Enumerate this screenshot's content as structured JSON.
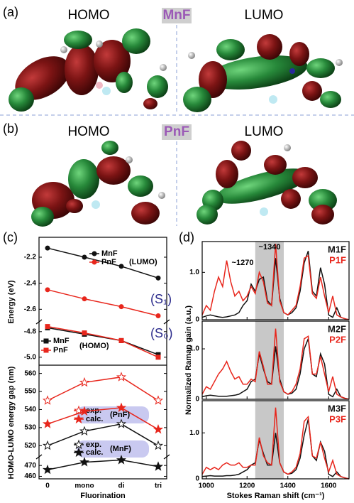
{
  "panels": [
    {
      "tag": "(a)",
      "homo": "HOMO",
      "molecule": "MnF",
      "lumo": "LUMO"
    },
    {
      "tag": "(b)",
      "homo": "HOMO",
      "molecule": "PnF",
      "lumo": "LUMO"
    },
    {
      "tag": "(c)"
    },
    {
      "tag": "(d)"
    }
  ],
  "chart_data": [
    {
      "type": "line",
      "categories": [
        "0",
        "mono",
        "di",
        "tri"
      ],
      "xlabel": "Fluorination",
      "ylabels": [
        "Energy (eV)",
        "HOMO-LUMO energy gap (nm)"
      ],
      "segments": [
        {
          "ylim": [
            -2.68,
            -2.08
          ],
          "yticks": [
            -2.2,
            -2.4,
            -2.6
          ],
          "notes": [
            "(LUMO)",
            "(S₁)"
          ],
          "series": [
            {
              "name": "MnF",
              "color": "#111111",
              "marker": "circle",
              "values": [
                -2.13,
                -2.2,
                -2.27,
                -2.36
              ]
            },
            {
              "name": "PnF",
              "color": "#e8261c",
              "marker": "circle",
              "values": [
                -2.45,
                -2.52,
                -2.58,
                -2.65
              ]
            }
          ]
        },
        {
          "ylim": [
            -5.04,
            -4.74
          ],
          "yticks": [
            -4.8,
            {
              "value": -5,
              "label": "-5.0"
            }
          ],
          "notes": [
            "(HOMO)",
            "(S₀)"
          ],
          "series": [
            {
              "name": "MnF",
              "color": "#111111",
              "marker": "square",
              "values": [
                -4.77,
                -4.82,
                -4.87,
                -4.98
              ]
            },
            {
              "name": "PnF",
              "color": "#e8261c",
              "marker": "square",
              "values": [
                -4.76,
                -4.81,
                -4.87,
                -5.0
              ]
            }
          ]
        },
        {
          "ylim": [
            515,
            563
          ],
          "yticks": [
            520,
            530,
            540,
            550,
            560
          ],
          "notes": [
            "(PnF)",
            "(MnF)"
          ],
          "series": [
            {
              "name": "exp.",
              "color": "#e8261c",
              "marker": "open-star",
              "values": [
                545,
                555,
                558,
                545
              ]
            },
            {
              "name": "calc.",
              "color": "#e8261c",
              "marker": "star",
              "values": [
                532,
                539,
                541,
                529
              ]
            },
            {
              "name": "exp.",
              "color": "#111111",
              "marker": "open-star",
              "values": [
                520,
                528,
                532,
                520
              ]
            }
          ]
        },
        {
          "ylim": [
            459,
            476
          ],
          "yticks": [
            460,
            470
          ],
          "notes": [],
          "series": [
            {
              "name": "calc.",
              "color": "#111111",
              "marker": "star",
              "values": [
                466,
                473,
                475,
                469
              ]
            }
          ]
        }
      ]
    },
    {
      "type": "line",
      "x": [
        980,
        1000,
        1020,
        1040,
        1060,
        1080,
        1100,
        1120,
        1140,
        1160,
        1180,
        1200,
        1220,
        1240,
        1260,
        1280,
        1300,
        1320,
        1340,
        1360,
        1380,
        1400,
        1420,
        1440,
        1460,
        1480,
        1500,
        1520,
        1540,
        1560,
        1580,
        1600,
        1620,
        1640,
        1660,
        1680,
        1700
      ],
      "xlim": [
        980,
        1700
      ],
      "ylim": [
        0,
        1.65
      ],
      "yticks": [
        0,
        {
          "value": 1,
          "label": "1.0"
        }
      ],
      "shaded_range": [
        1240,
        1380
      ],
      "annotations": [
        "~1270",
        "~1340"
      ],
      "series": [
        {
          "name": "M1F",
          "color": "#111111",
          "values": [
            0.05,
            0.08,
            0.1,
            0.08,
            0.06,
            0.05,
            0.06,
            0.08,
            0.1,
            0.15,
            0.3,
            0.4,
            0.75,
            0.6,
            0.85,
            0.9,
            0.4,
            0.3,
            1.3,
            0.45,
            0.15,
            0.1,
            0.15,
            0.25,
            0.6,
            1.2,
            1.45,
            0.6,
            0.5,
            1.1,
            0.75,
            0.1,
            0.05,
            0.25,
            0.05,
            0.02,
            0
          ]
        },
        {
          "name": "P1F",
          "color": "#e8261c",
          "values": [
            0.1,
            0.3,
            0.2,
            0.6,
            0.9,
            0.7,
            1.25,
            0.8,
            0.5,
            0.6,
            0.4,
            0.5,
            0.7,
            0.55,
            1.0,
            0.8,
            0.35,
            0.3,
            1.6,
            0.4,
            0.15,
            0.1,
            0.2,
            0.3,
            0.7,
            1.3,
            1.35,
            0.55,
            0.45,
            0.9,
            0.5,
            0.15,
            0.5,
            0.1,
            0.05,
            0.02,
            0
          ]
        }
      ]
    },
    {
      "type": "line",
      "x": [
        980,
        1000,
        1020,
        1040,
        1060,
        1080,
        1100,
        1120,
        1140,
        1160,
        1180,
        1200,
        1220,
        1240,
        1260,
        1280,
        1300,
        1320,
        1340,
        1360,
        1380,
        1400,
        1420,
        1440,
        1460,
        1480,
        1500,
        1520,
        1540,
        1560,
        1580,
        1600,
        1620,
        1640,
        1660,
        1680,
        1700
      ],
      "xlim": [
        980,
        1700
      ],
      "ylim": [
        0,
        1.55
      ],
      "yticks": [
        0,
        {
          "value": 1,
          "label": "1.0"
        }
      ],
      "shaded_range": [
        1240,
        1380
      ],
      "ylabel": "Normalized Raman gain (a.u.)",
      "series": [
        {
          "name": "M2F",
          "color": "#111111",
          "values": [
            0.05,
            0.07,
            0.08,
            0.07,
            0.06,
            0.06,
            0.06,
            0.07,
            0.08,
            0.1,
            0.15,
            0.2,
            0.35,
            0.4,
            0.9,
            0.6,
            0.35,
            0.3,
            1.05,
            0.4,
            0.15,
            0.1,
            0.12,
            0.2,
            0.5,
            1.0,
            1.2,
            0.5,
            0.45,
            0.9,
            0.7,
            0.1,
            0.05,
            0.2,
            0.05,
            0.02,
            0
          ]
        },
        {
          "name": "P2F",
          "color": "#e8261c",
          "values": [
            0.1,
            0.25,
            0.2,
            0.35,
            0.5,
            0.6,
            0.75,
            0.55,
            0.4,
            0.45,
            0.3,
            0.3,
            0.4,
            0.35,
            0.95,
            0.65,
            0.3,
            0.3,
            1.4,
            0.35,
            0.15,
            0.1,
            0.15,
            0.3,
            0.6,
            1.2,
            1.25,
            0.5,
            0.5,
            0.85,
            0.5,
            0.15,
            0.45,
            0.1,
            0.05,
            0.02,
            0
          ]
        }
      ]
    },
    {
      "type": "line",
      "x": [
        980,
        1000,
        1020,
        1040,
        1060,
        1080,
        1100,
        1120,
        1140,
        1160,
        1180,
        1200,
        1220,
        1240,
        1260,
        1280,
        1300,
        1320,
        1340,
        1360,
        1380,
        1400,
        1420,
        1440,
        1460,
        1480,
        1500,
        1520,
        1540,
        1560,
        1580,
        1600,
        1620,
        1640,
        1660,
        1680,
        1700
      ],
      "xlim": [
        980,
        1700
      ],
      "ylim": [
        0,
        1.7
      ],
      "yticks": [
        0,
        {
          "value": 1,
          "label": "1.0"
        }
      ],
      "shaded_range": [
        1240,
        1380
      ],
      "xticks": [
        1000,
        1200,
        1400,
        1600
      ],
      "xlabel": "Stokes Raman shift (cm⁻¹)",
      "series": [
        {
          "name": "M3F",
          "color": "#111111",
          "values": [
            0.05,
            0.06,
            0.07,
            0.06,
            0.06,
            0.06,
            0.07,
            0.07,
            0.08,
            0.1,
            0.15,
            0.2,
            0.3,
            0.35,
            0.85,
            0.55,
            0.3,
            0.3,
            1.0,
            0.35,
            0.15,
            0.1,
            0.12,
            0.2,
            0.45,
            0.95,
            1.3,
            0.5,
            0.4,
            0.8,
            0.6,
            0.1,
            0.05,
            0.15,
            0.05,
            0.02,
            0
          ]
        },
        {
          "name": "P3F",
          "color": "#e8261c",
          "values": [
            0.1,
            0.25,
            0.2,
            0.25,
            0.2,
            0.3,
            0.35,
            0.3,
            0.3,
            0.35,
            0.25,
            0.25,
            0.3,
            0.3,
            0.9,
            0.5,
            0.35,
            0.3,
            1.55,
            0.35,
            0.15,
            0.1,
            0.15,
            0.25,
            0.55,
            1.25,
            1.35,
            0.5,
            0.45,
            0.8,
            0.45,
            0.15,
            0.4,
            0.1,
            0.05,
            0.02,
            0
          ]
        }
      ]
    }
  ]
}
